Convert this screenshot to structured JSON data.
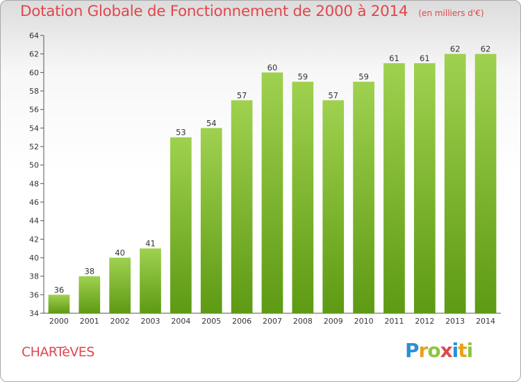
{
  "title": "Dotation Globale de Fonctionnement de 2000 à 2014",
  "unit": "(en milliers d'€)",
  "commune": "CHARTèVES",
  "logo": {
    "letters": [
      "P",
      "r",
      "o",
      "x",
      "i",
      "t",
      "i"
    ],
    "colors": [
      "#2a8fd6",
      "#e8a21a",
      "#8cc63f",
      "#e0474c",
      "#2a8fd6",
      "#e8a21a",
      "#8cc63f"
    ]
  },
  "chart_data": {
    "type": "bar",
    "categories": [
      "2000",
      "2001",
      "2002",
      "2003",
      "2004",
      "2005",
      "2006",
      "2007",
      "2008",
      "2009",
      "2010",
      "2011",
      "2012",
      "2013",
      "2014"
    ],
    "values": [
      36,
      38,
      40,
      41,
      53,
      54,
      57,
      60,
      59,
      57,
      59,
      61,
      61,
      62,
      62
    ],
    "data_labels": [
      "36",
      "38",
      "40",
      "41",
      "53",
      "54",
      "57",
      "60",
      "59",
      "57",
      "59",
      "61",
      "61",
      "62",
      "62"
    ],
    "title": "Dotation Globale de Fonctionnement de 2000 à 2014",
    "xlabel": "",
    "ylabel": "",
    "ylim": [
      34,
      64
    ],
    "yticks": [
      34,
      36,
      38,
      40,
      42,
      44,
      46,
      48,
      50,
      52,
      54,
      56,
      58,
      60,
      62,
      64
    ],
    "grid": false,
    "bar_color": "#7ab52e"
  }
}
